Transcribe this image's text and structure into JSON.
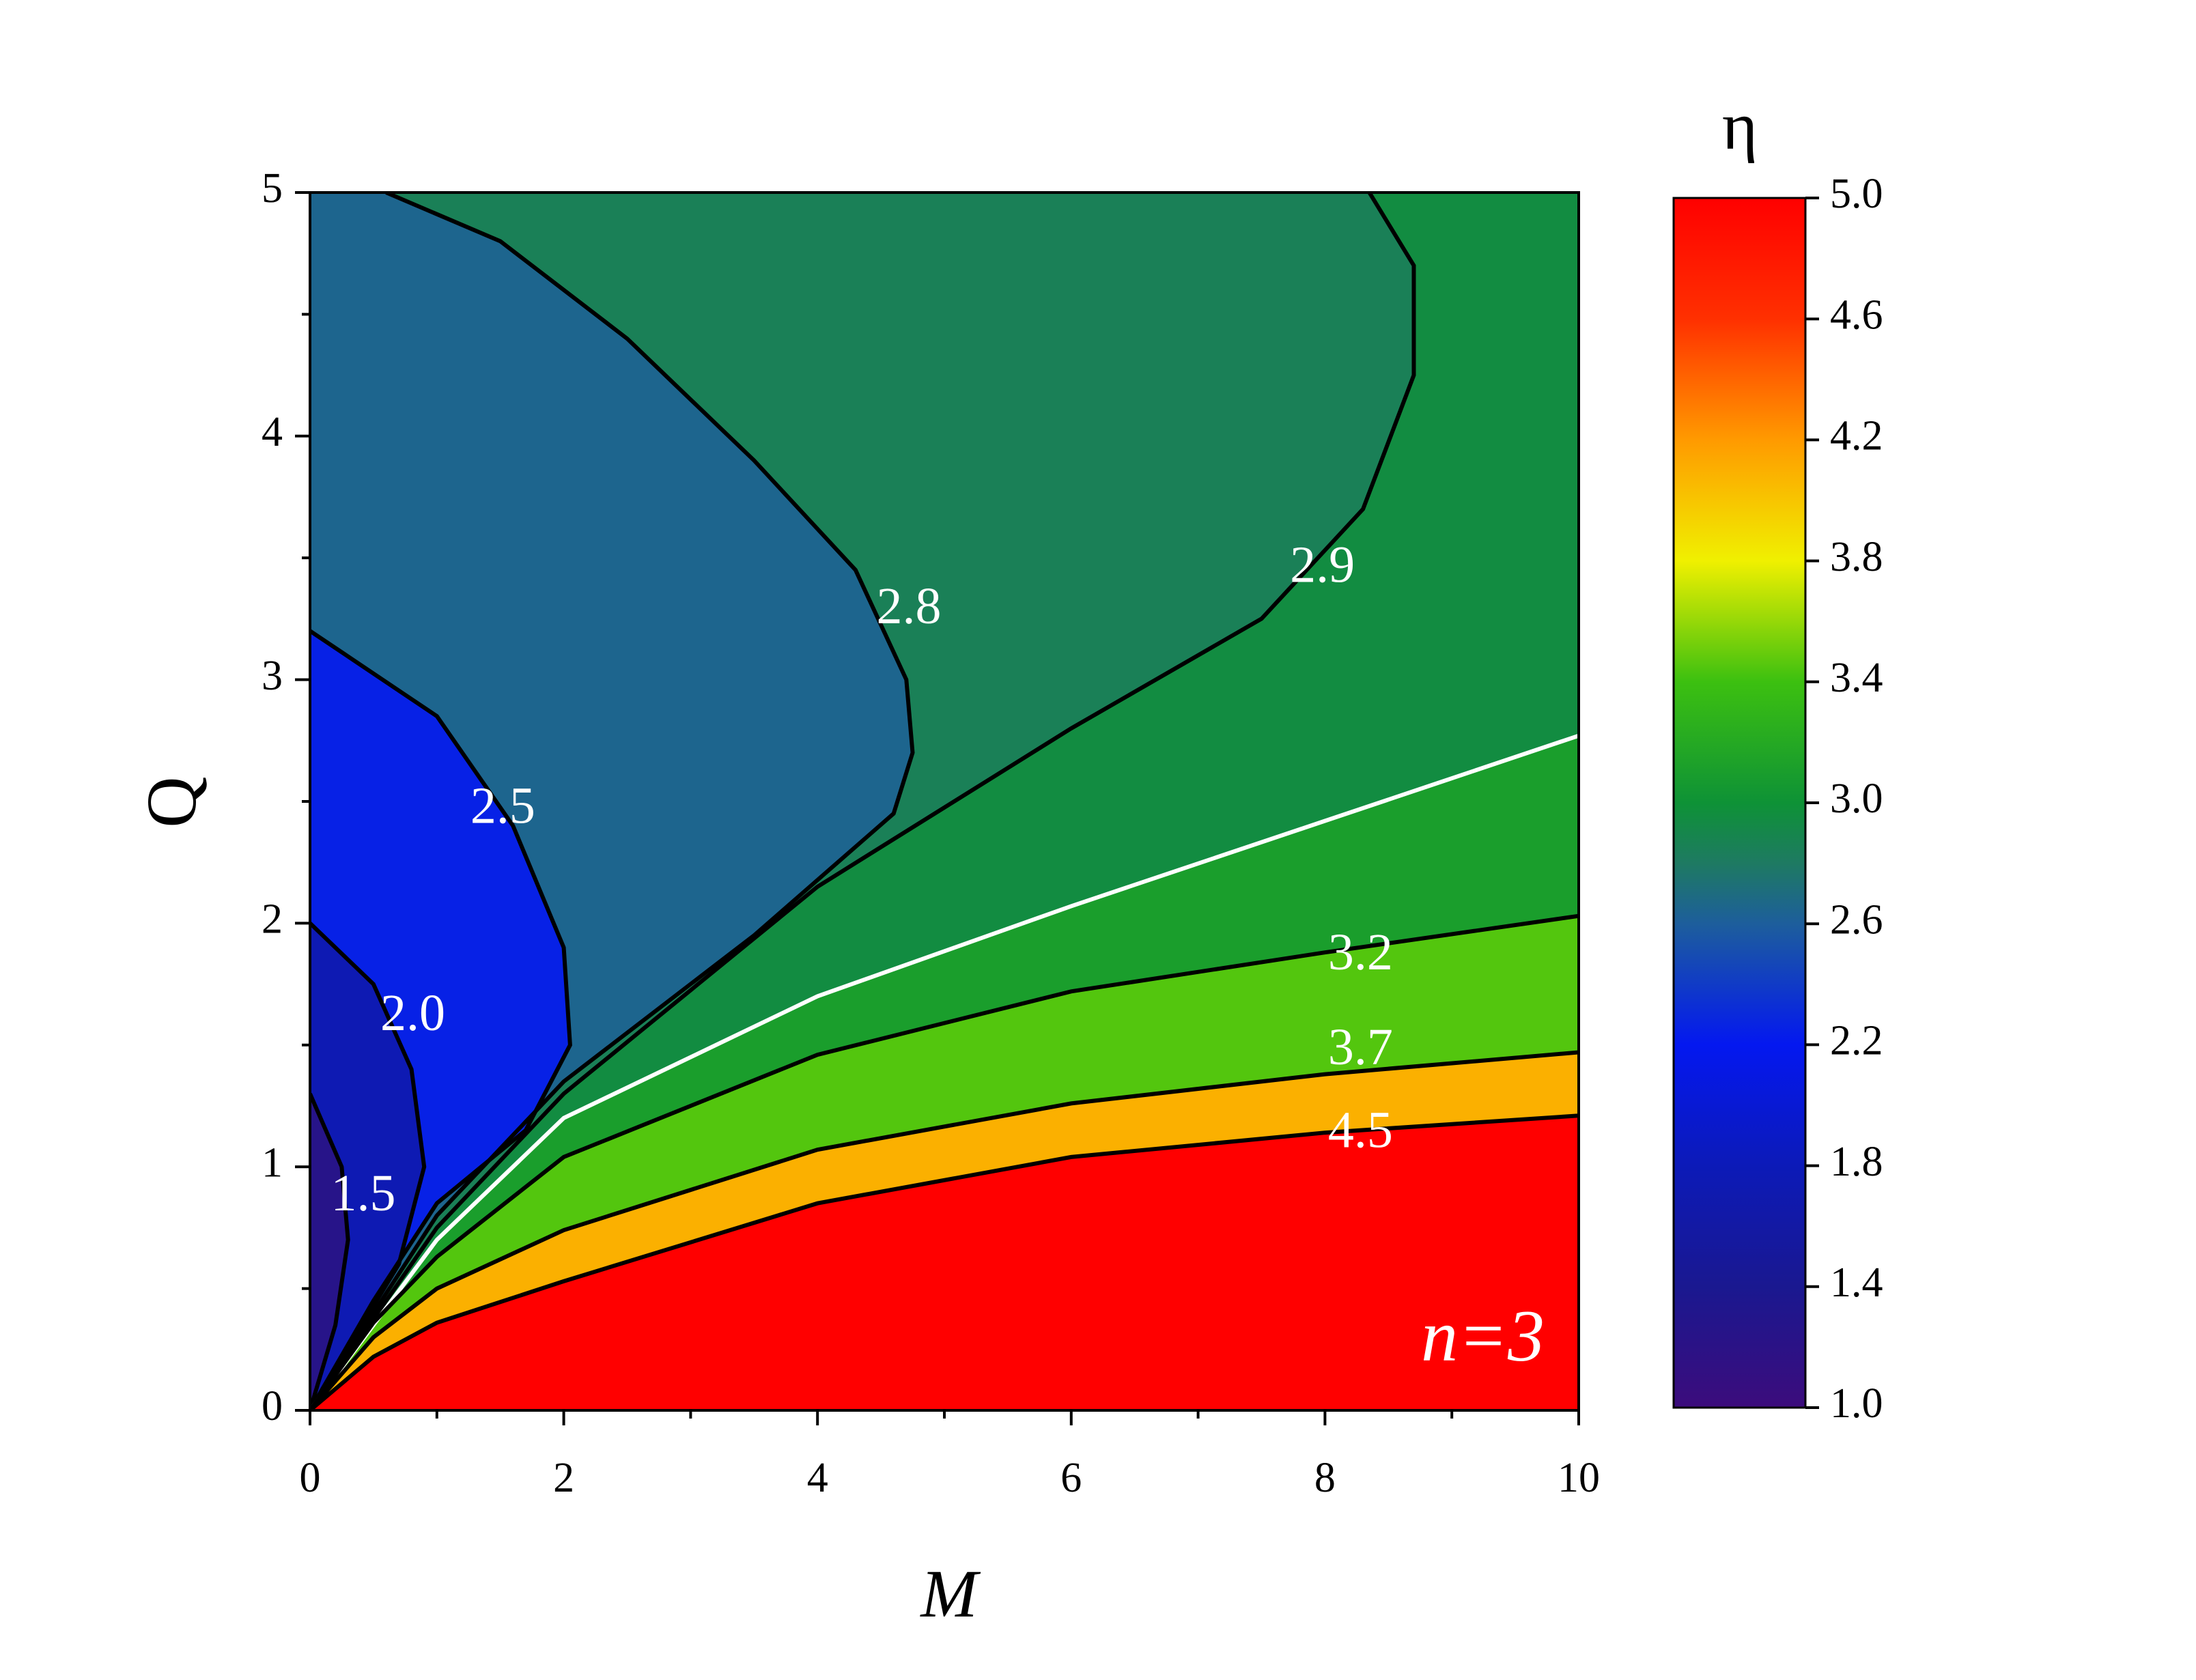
{
  "chart_data": {
    "type": "contour",
    "xlabel": "M",
    "ylabel": "Q",
    "colorbar_label": "η",
    "annotation": "n=3",
    "xlim": [
      0,
      10
    ],
    "ylim": [
      0,
      5
    ],
    "xticks": [
      0,
      2,
      4,
      6,
      8,
      10
    ],
    "yticks": [
      0,
      1,
      2,
      3,
      4,
      5
    ],
    "xminorticks": [
      1,
      3,
      5,
      7,
      9
    ],
    "yminorticks": [
      0.5,
      1.5,
      2.5,
      3.5,
      4.5
    ],
    "zlim": [
      1.0,
      5.0
    ],
    "zticks": [
      {
        "value": 1.0,
        "label": "1.0"
      },
      {
        "value": 1.4,
        "label": "1.4"
      },
      {
        "value": 1.8,
        "label": "1.8"
      },
      {
        "value": 2.2,
        "label": "2.2"
      },
      {
        "value": 2.6,
        "label": "2.6"
      },
      {
        "value": 3.0,
        "label": "3.0"
      },
      {
        "value": 3.4,
        "label": "3.4"
      },
      {
        "value": 3.8,
        "label": "3.8"
      },
      {
        "value": 4.2,
        "label": "4.2"
      },
      {
        "value": 4.6,
        "label": "4.6"
      },
      {
        "value": 5.0,
        "label": "5.0"
      }
    ],
    "contours": [
      {
        "label": "1.5",
        "level": 1.5,
        "color": "#000000",
        "x": [
          0,
          0.25,
          0.3,
          0.2,
          0
        ],
        "y": [
          1.3,
          1.0,
          0.7,
          0.35,
          0
        ]
      },
      {
        "label": "2.0",
        "level": 2.0,
        "color": "#000000",
        "x": [
          0,
          0.5,
          0.8,
          0.9,
          0.7,
          0.35,
          0
        ],
        "y": [
          2.0,
          1.75,
          1.4,
          1.0,
          0.6,
          0.3,
          0
        ]
      },
      {
        "label": "2.5",
        "level": 2.5,
        "color": "#000000",
        "x": [
          0,
          1,
          1.6,
          2.0,
          2.05,
          1.7,
          1,
          0.5,
          0
        ],
        "y": [
          3.2,
          2.85,
          2.4,
          1.9,
          1.5,
          1.15,
          0.85,
          0.45,
          0
        ]
      },
      {
        "label": "2.8",
        "level": 2.8,
        "color": "#000000",
        "x": [
          0.6,
          1.5,
          2.5,
          3.5,
          4.3,
          4.7,
          4.75,
          4.6,
          3.5,
          2,
          1,
          0
        ],
        "y": [
          5,
          4.8,
          4.4,
          3.9,
          3.45,
          3.0,
          2.7,
          2.45,
          1.95,
          1.35,
          0.8,
          0
        ]
      },
      {
        "label": "2.9",
        "level": 2.9,
        "color": "#000000",
        "x": [
          0,
          1,
          2,
          4,
          6,
          7.5,
          8.3,
          8.7,
          8.7,
          8.35
        ],
        "y": [
          0,
          0.75,
          1.3,
          2.15,
          2.8,
          3.25,
          3.7,
          4.25,
          4.7,
          5
        ]
      },
      {
        "level": 3.0,
        "color": "#ffffff",
        "x": [
          0,
          1,
          2,
          4,
          6,
          8,
          10
        ],
        "y": [
          0,
          0.7,
          1.2,
          1.7,
          2.07,
          2.42,
          2.77
        ]
      },
      {
        "label": "3.2",
        "level": 3.2,
        "color": "#000000",
        "x": [
          0,
          0.5,
          1,
          2,
          4,
          6,
          8,
          10
        ],
        "y": [
          0,
          0.36,
          0.63,
          1.04,
          1.46,
          1.72,
          1.88,
          2.03
        ]
      },
      {
        "label": "3.7",
        "level": 3.7,
        "color": "#000000",
        "x": [
          0,
          0.5,
          1,
          2,
          4,
          6,
          8,
          10
        ],
        "y": [
          0,
          0.3,
          0.5,
          0.74,
          1.07,
          1.26,
          1.38,
          1.47
        ]
      },
      {
        "label": "4.5",
        "level": 4.5,
        "color": "#000000",
        "x": [
          0,
          0.5,
          1,
          2,
          4,
          6,
          8,
          10
        ],
        "y": [
          0,
          0.22,
          0.36,
          0.53,
          0.85,
          1.04,
          1.14,
          1.21
        ]
      }
    ]
  }
}
